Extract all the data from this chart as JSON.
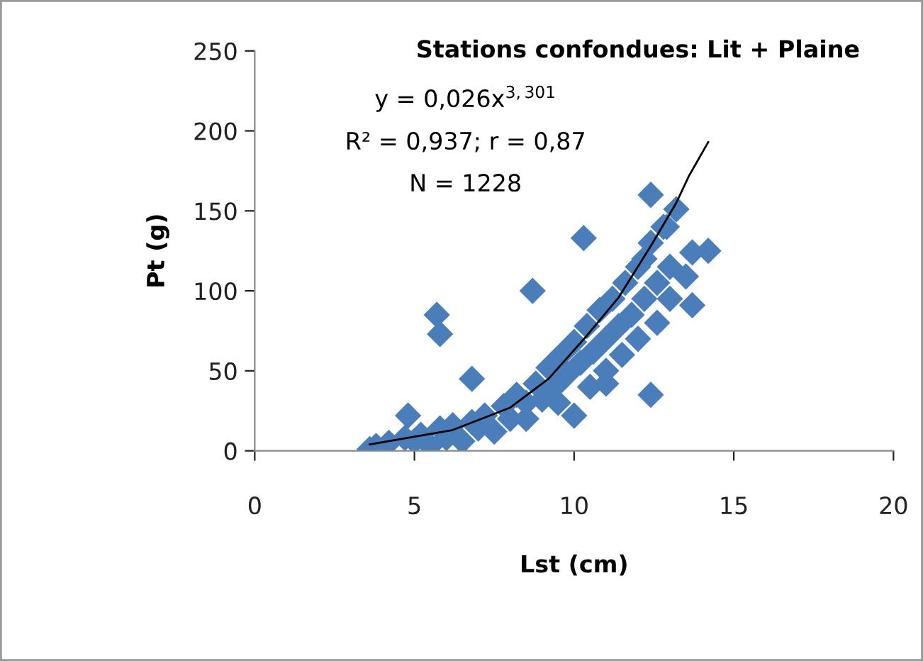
{
  "chart_data": {
    "type": "scatter",
    "title": "Stations confondues: Lit + Plaine",
    "xlabel": "Lst (cm)",
    "ylabel": "Pt (g)",
    "annotations": [
      "y = 0,026x$^{3,301}$",
      "R² = 0,937; r = 0,87",
      "N = 1228"
    ],
    "xlim": [
      0,
      20
    ],
    "xticks": [
      0,
      5,
      10,
      15,
      20
    ],
    "ylim": [
      0,
      250
    ],
    "yticks": [
      0,
      50,
      100,
      150,
      200,
      250
    ],
    "grid": false,
    "legend": false,
    "series": [
      {
        "color": "#4a7ebb",
        "marker": "diamond",
        "x": [
          3.6,
          3.8,
          4.2,
          4.7,
          4.8,
          5.0,
          5.2,
          5.8,
          6.0,
          6.2,
          6.8,
          7.0,
          7.2,
          7.8,
          8.0,
          8.2,
          8.5,
          8.8,
          9.0,
          9.2,
          9.4,
          9.6,
          9.8,
          10.0,
          10.2,
          10.4,
          10.6,
          10.8,
          11.0,
          11.2,
          11.4,
          11.6,
          11.8,
          12.0,
          12.2,
          12.4,
          12.6,
          12.8,
          13.0,
          13.0,
          12.6,
          12.0,
          11.5,
          11.0,
          10.5,
          9.5,
          8.5,
          7.5,
          6.5,
          5.5,
          12.9,
          12.2,
          11.0,
          5.7,
          5.8,
          12.4,
          13.2,
          10.3,
          8.7,
          14.2,
          13.7,
          13.5,
          13.7,
          12.4,
          6.8,
          10.0
        ],
        "values": [
          1,
          3,
          5,
          8,
          22,
          6,
          10,
          14,
          8,
          16,
          18,
          14,
          22,
          28,
          20,
          35,
          30,
          42,
          32,
          52,
          40,
          60,
          48,
          68,
          55,
          78,
          62,
          88,
          70,
          95,
          78,
          105,
          85,
          115,
          95,
          130,
          105,
          140,
          115,
          95,
          80,
          70,
          60,
          50,
          40,
          30,
          20,
          12,
          6,
          3,
          140,
          120,
          42,
          85,
          73,
          160,
          151,
          133,
          100,
          125,
          124,
          109,
          91,
          35,
          45,
          22
        ]
      },
      {
        "type": "line",
        "color": "#000000",
        "marker": "none",
        "line_style": "solid",
        "x": [
          3.6,
          6.2,
          8.0,
          9.2,
          10.4,
          11.4,
          12.4,
          13.2,
          13.6,
          14.2
        ],
        "values": [
          4,
          13,
          27,
          45,
          72,
          96,
          128,
          155,
          172,
          193
        ]
      }
    ]
  }
}
